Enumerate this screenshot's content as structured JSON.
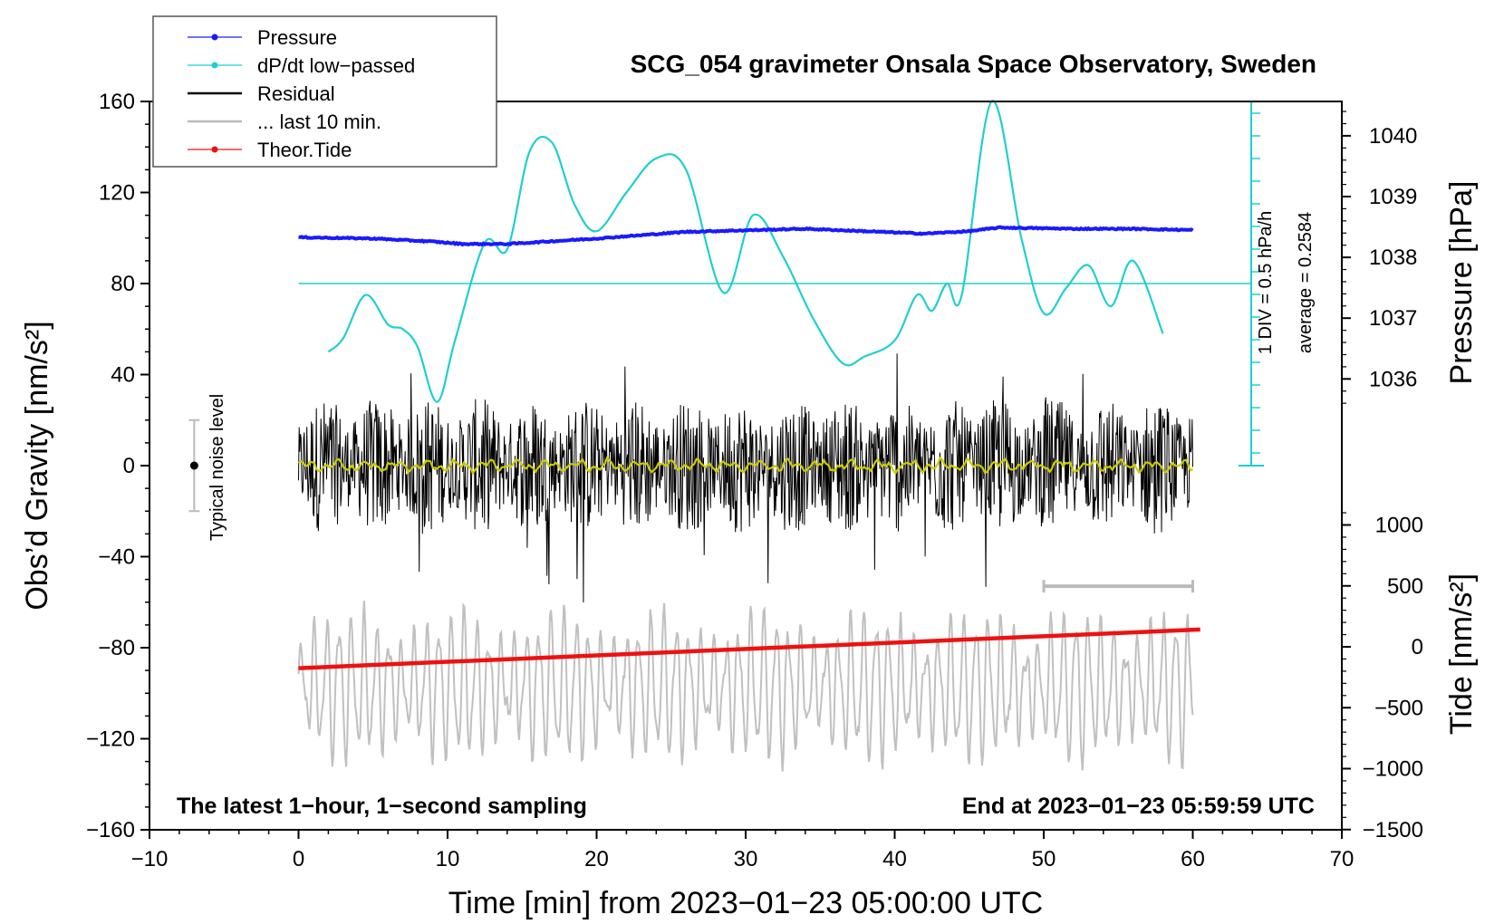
{
  "chart_data": {
    "type": "line",
    "title": "SCG_054 gravimeter Onsala Space Observatory, Sweden",
    "xlabel": "Time [min] from 2023−01−23 05:00:00 UTC",
    "ylabel_left": "Obs’d Gravity [nm/s²]",
    "ylabel_right_top": "Pressure [hPa]",
    "ylabel_right_bottom": "Tide [nm/s²]",
    "xlim": [
      -10,
      70
    ],
    "ylim_left": [
      -160,
      160
    ],
    "x_ticks": [
      "−10",
      "0",
      "10",
      "20",
      "30",
      "40",
      "50",
      "60",
      "70"
    ],
    "y_ticks_left": [
      "160",
      "120",
      "80",
      "40",
      "0",
      "−40",
      "−80",
      "−120",
      "−160"
    ],
    "pressure_ticks": [
      "1040",
      "1039",
      "1038",
      "1037",
      "1036"
    ],
    "tide_ticks": [
      "1000",
      "500",
      "0",
      "−500",
      "−1000",
      "−1500"
    ],
    "legend": [
      {
        "label": "Pressure",
        "color": "#1a1aff"
      },
      {
        "label": "dP/dt low−passed",
        "color": "#1fcfcf"
      },
      {
        "label": "Residual",
        "color": "#000000"
      },
      {
        "label": "... last 10 min.",
        "color": "#bbbbbb"
      },
      {
        "label": "Theor.Tide",
        "color": "#ee1111"
      }
    ],
    "notes": {
      "noise": "Typical noise level",
      "bottom_left": "The latest 1−hour, 1−second sampling",
      "bottom_right": "End at 2023−01−23 05:59:59 UTC",
      "div": "1 DIV = 0.5 hPa/h",
      "average": "average = 0.2584"
    },
    "series": [
      {
        "name": "Pressure",
        "unit": "hPa",
        "x": [
          0,
          5,
          9,
          11,
          14,
          20,
          26,
          34,
          42,
          45,
          47,
          52,
          56,
          60
        ],
        "values": [
          1038.33,
          1038.31,
          1038.26,
          1038.22,
          1038.22,
          1038.31,
          1038.42,
          1038.47,
          1038.39,
          1038.43,
          1038.49,
          1038.47,
          1038.47,
          1038.45
        ]
      },
      {
        "name": "dP/dt low-passed",
        "unit": "nm/s² (display scale)",
        "x": [
          2,
          3,
          4.5,
          6,
          7,
          8,
          9.3,
          10.5,
          12.5,
          14,
          15.5,
          17,
          18.5,
          20,
          22,
          24,
          26,
          28.5,
          30.5,
          32.5,
          34.5,
          36.5,
          38,
          40,
          41.5,
          42.5,
          43.5,
          44.5,
          46.5,
          48.5,
          50,
          51.5,
          53,
          54.5,
          56,
          58
        ],
        "values": [
          50,
          56,
          75,
          62,
          60,
          52,
          28,
          55,
          98,
          95,
          138,
          142,
          115,
          103,
          120,
          135,
          130,
          76,
          110,
          92,
          65,
          45,
          48,
          55,
          75,
          68,
          80,
          75,
          175,
          100,
          67,
          78,
          88,
          70,
          90,
          58
        ]
      },
      {
        "name": "Residual",
        "unit": "nm/s²",
        "x_range": [
          0,
          60
        ],
        "mean": 0,
        "typical_amplitude": 30
      },
      {
        "name": "Residual smoothed",
        "unit": "nm/s²",
        "x_range": [
          0,
          60
        ],
        "mean": 0
      },
      {
        "name": "... last 10 min.",
        "unit": "nm/s²",
        "x_range": [
          0,
          60
        ],
        "center": -97,
        "typical_amplitude": 22
      },
      {
        "name": "Theor.Tide",
        "unit": "nm/s²",
        "x": [
          0,
          60.5
        ],
        "values": [
          -89,
          -72
        ]
      }
    ],
    "noise_bar": {
      "x": -7,
      "center": 0,
      "halfwidth": 20
    },
    "last10_bar": {
      "x": [
        50,
        60
      ],
      "y": -53
    },
    "zero_line_pressure_ref": 80,
    "grid": false
  }
}
